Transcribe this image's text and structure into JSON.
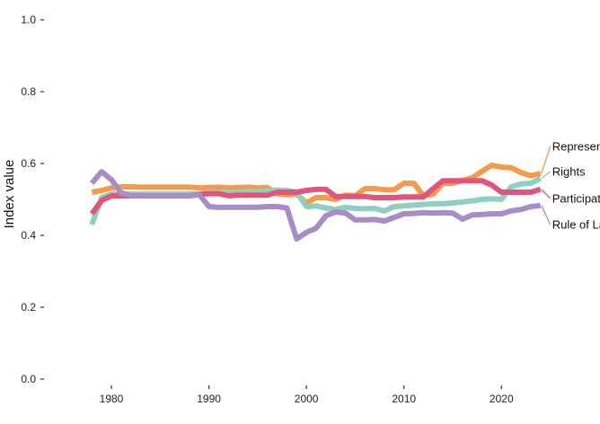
{
  "chart_data": {
    "type": "line",
    "title": "",
    "xlabel": "",
    "ylabel": "Index value",
    "xlim": [
      1976.5,
      2029
    ],
    "ylim": [
      -0.03,
      1.03
    ],
    "x_ticks": [
      1980,
      1990,
      2000,
      2010,
      2020
    ],
    "x_tick_labels": [
      "1980",
      "1990",
      "2000",
      "2010",
      "2020"
    ],
    "y_ticks": [
      0.0,
      0.2,
      0.4,
      0.6,
      0.8,
      1.0
    ],
    "y_tick_labels": [
      "0.0",
      "0.2",
      "0.4",
      "0.6",
      "0.8",
      "1.0"
    ],
    "grid": false,
    "legend": "direct labels at right end of lines",
    "x": [
      1978,
      1979,
      1980,
      1981,
      1982,
      1983,
      1984,
      1985,
      1986,
      1987,
      1988,
      1989,
      1990,
      1991,
      1992,
      1993,
      1994,
      1995,
      1996,
      1997,
      1998,
      1999,
      2000,
      2001,
      2002,
      2003,
      2004,
      2005,
      2006,
      2007,
      2008,
      2009,
      2010,
      2011,
      2012,
      2013,
      2014,
      2015,
      2016,
      2017,
      2018,
      2019,
      2020,
      2021,
      2022,
      2023,
      2024
    ],
    "series": [
      {
        "name": "Representation",
        "color": "#f59a4a",
        "label_y": 0.648,
        "values": [
          0.52,
          0.525,
          0.532,
          0.535,
          0.535,
          0.534,
          0.534,
          0.534,
          0.534,
          0.534,
          0.534,
          0.532,
          0.533,
          0.534,
          0.532,
          0.533,
          0.534,
          0.532,
          0.533,
          0.516,
          0.513,
          0.515,
          0.49,
          0.505,
          0.505,
          0.5,
          0.512,
          0.51,
          0.53,
          0.53,
          0.527,
          0.527,
          0.545,
          0.545,
          0.51,
          0.515,
          0.545,
          0.545,
          0.553,
          0.56,
          0.578,
          0.595,
          0.59,
          0.588,
          0.575,
          0.566,
          0.572
        ]
      },
      {
        "name": "Rights",
        "color": "#8dcfc0",
        "label_y": 0.578,
        "values": [
          0.43,
          0.505,
          0.515,
          0.515,
          0.515,
          0.515,
          0.515,
          0.515,
          0.515,
          0.515,
          0.515,
          0.515,
          0.52,
          0.52,
          0.52,
          0.52,
          0.522,
          0.523,
          0.524,
          0.526,
          0.525,
          0.52,
          0.48,
          0.482,
          0.476,
          0.472,
          0.478,
          0.475,
          0.474,
          0.475,
          0.468,
          0.48,
          0.482,
          0.484,
          0.486,
          0.488,
          0.488,
          0.49,
          0.493,
          0.496,
          0.5,
          0.502,
          0.5,
          0.535,
          0.543,
          0.545,
          0.558
        ]
      },
      {
        "name": "Participation",
        "color": "#e0557a",
        "label_y": 0.503,
        "values": [
          0.46,
          0.497,
          0.51,
          0.51,
          0.51,
          0.51,
          0.51,
          0.51,
          0.51,
          0.51,
          0.51,
          0.514,
          0.516,
          0.516,
          0.51,
          0.512,
          0.512,
          0.512,
          0.512,
          0.52,
          0.52,
          0.52,
          0.525,
          0.528,
          0.528,
          0.508,
          0.508,
          0.508,
          0.508,
          0.505,
          0.505,
          0.505,
          0.507,
          0.507,
          0.507,
          0.53,
          0.552,
          0.552,
          0.552,
          0.552,
          0.552,
          0.54,
          0.52,
          0.52,
          0.52,
          0.52,
          0.528
        ]
      },
      {
        "name": "Rule of Law",
        "color": "#a98bc8",
        "label_y": 0.43,
        "values": [
          0.545,
          0.577,
          0.555,
          0.518,
          0.51,
          0.51,
          0.51,
          0.51,
          0.51,
          0.51,
          0.51,
          0.514,
          0.48,
          0.478,
          0.478,
          0.478,
          0.478,
          0.478,
          0.48,
          0.48,
          0.476,
          0.39,
          0.408,
          0.42,
          0.455,
          0.465,
          0.462,
          0.443,
          0.443,
          0.444,
          0.44,
          0.45,
          0.46,
          0.461,
          0.463,
          0.462,
          0.463,
          0.462,
          0.445,
          0.457,
          0.458,
          0.46,
          0.46,
          0.468,
          0.472,
          0.48,
          0.483
        ]
      }
    ]
  }
}
